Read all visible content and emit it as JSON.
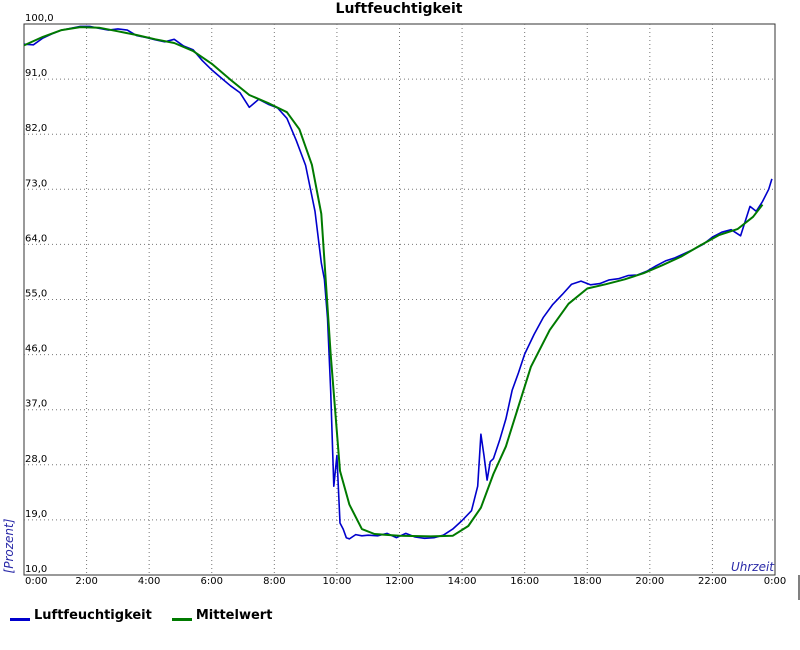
{
  "chart_data": {
    "type": "line",
    "title": "Luftfeuchtigkeit",
    "xlabel": "Uhrzeit",
    "ylabel": "[Prozent]",
    "xlim": [
      0,
      24
    ],
    "ylim": [
      10,
      100
    ],
    "grid": true,
    "legend_position": "bottom-left",
    "y_ticks": [
      "10,0",
      "19,0",
      "28,0",
      "37,0",
      "46,0",
      "55,0",
      "64,0",
      "73,0",
      "82,0",
      "91,0",
      "100,0"
    ],
    "x_ticks": [
      "0:00",
      "2:00",
      "4:00",
      "6:00",
      "8:00",
      "10:00",
      "12:00",
      "14:00",
      "16:00",
      "18:00",
      "20:00",
      "22:00",
      "0:00"
    ],
    "x_tick_hours": [
      0,
      2,
      4,
      6,
      8,
      10,
      12,
      14,
      16,
      18,
      20,
      22,
      24
    ],
    "series": [
      {
        "name": "Luftfeuchtigkeit",
        "color": "#0000cc",
        "x": [
          0.0,
          0.3,
          0.6,
          0.9,
          1.2,
          1.5,
          1.8,
          2.1,
          2.4,
          2.7,
          3.0,
          3.3,
          3.6,
          3.9,
          4.2,
          4.5,
          4.8,
          5.1,
          5.4,
          5.7,
          6.0,
          6.3,
          6.6,
          6.9,
          7.2,
          7.5,
          7.8,
          8.1,
          8.4,
          8.7,
          9.0,
          9.3,
          9.5,
          9.6,
          9.7,
          9.8,
          9.9,
          10.0,
          10.1,
          10.2,
          10.3,
          10.4,
          10.6,
          10.8,
          11.0,
          11.3,
          11.6,
          11.9,
          12.2,
          12.5,
          12.8,
          13.1,
          13.4,
          13.7,
          14.0,
          14.3,
          14.5,
          14.6,
          14.7,
          14.8,
          14.9,
          15.0,
          15.2,
          15.4,
          15.6,
          15.8,
          16.0,
          16.3,
          16.6,
          16.9,
          17.2,
          17.5,
          17.8,
          18.1,
          18.4,
          18.7,
          19.0,
          19.3,
          19.6,
          19.9,
          20.2,
          20.5,
          20.8,
          21.1,
          21.4,
          21.7,
          22.0,
          22.3,
          22.6,
          22.9,
          23.2,
          23.4,
          23.6,
          23.8,
          23.9
        ],
        "y": [
          96.7,
          96.6,
          97.7,
          98.4,
          99.0,
          99.3,
          99.6,
          99.6,
          99.3,
          99.0,
          99.2,
          99.0,
          98.1,
          97.8,
          97.4,
          97.1,
          97.5,
          96.4,
          95.8,
          94.0,
          92.5,
          91.2,
          89.9,
          88.8,
          86.4,
          87.7,
          86.9,
          86.3,
          84.6,
          81.0,
          76.9,
          69.4,
          61.0,
          58.3,
          52.0,
          40.0,
          24.5,
          29.5,
          18.5,
          17.5,
          16.1,
          15.9,
          16.6,
          16.4,
          16.5,
          16.4,
          16.8,
          16.1,
          16.8,
          16.2,
          16.0,
          16.1,
          16.5,
          17.5,
          18.9,
          20.5,
          24.5,
          33.0,
          29.5,
          25.5,
          28.5,
          29.0,
          32.0,
          35.5,
          40.2,
          43.0,
          46.1,
          49.3,
          52.1,
          54.2,
          55.8,
          57.5,
          58.0,
          57.4,
          57.6,
          58.2,
          58.4,
          58.9,
          59.0,
          59.6,
          60.5,
          61.3,
          61.8,
          62.5,
          63.2,
          64.0,
          65.2,
          66.0,
          66.4,
          65.4,
          70.2,
          69.4,
          71.0,
          73.0,
          74.7
        ]
      },
      {
        "name": "Mittelwert",
        "color": "#007a00",
        "x": [
          0.0,
          0.6,
          1.2,
          1.8,
          2.4,
          3.0,
          3.6,
          4.2,
          4.8,
          5.4,
          6.0,
          6.6,
          7.2,
          7.8,
          8.4,
          8.8,
          9.2,
          9.5,
          9.8,
          10.1,
          10.4,
          10.8,
          11.2,
          12.0,
          13.0,
          13.7,
          14.2,
          14.6,
          15.0,
          15.4,
          15.8,
          16.2,
          16.8,
          17.4,
          18.0,
          18.6,
          19.2,
          19.8,
          20.4,
          21.0,
          21.6,
          22.2,
          22.8,
          23.3,
          23.6
        ],
        "y": [
          96.5,
          97.9,
          99.0,
          99.5,
          99.4,
          98.8,
          98.2,
          97.5,
          96.9,
          95.6,
          93.5,
          90.9,
          88.4,
          87.1,
          85.6,
          82.8,
          77.0,
          69.0,
          46.0,
          27.0,
          21.5,
          17.5,
          16.7,
          16.4,
          16.3,
          16.4,
          18.0,
          21.0,
          26.5,
          31.0,
          37.5,
          44.0,
          50.0,
          54.3,
          56.8,
          57.5,
          58.3,
          59.3,
          60.6,
          62.0,
          63.8,
          65.5,
          66.5,
          68.5,
          70.5
        ]
      }
    ]
  }
}
